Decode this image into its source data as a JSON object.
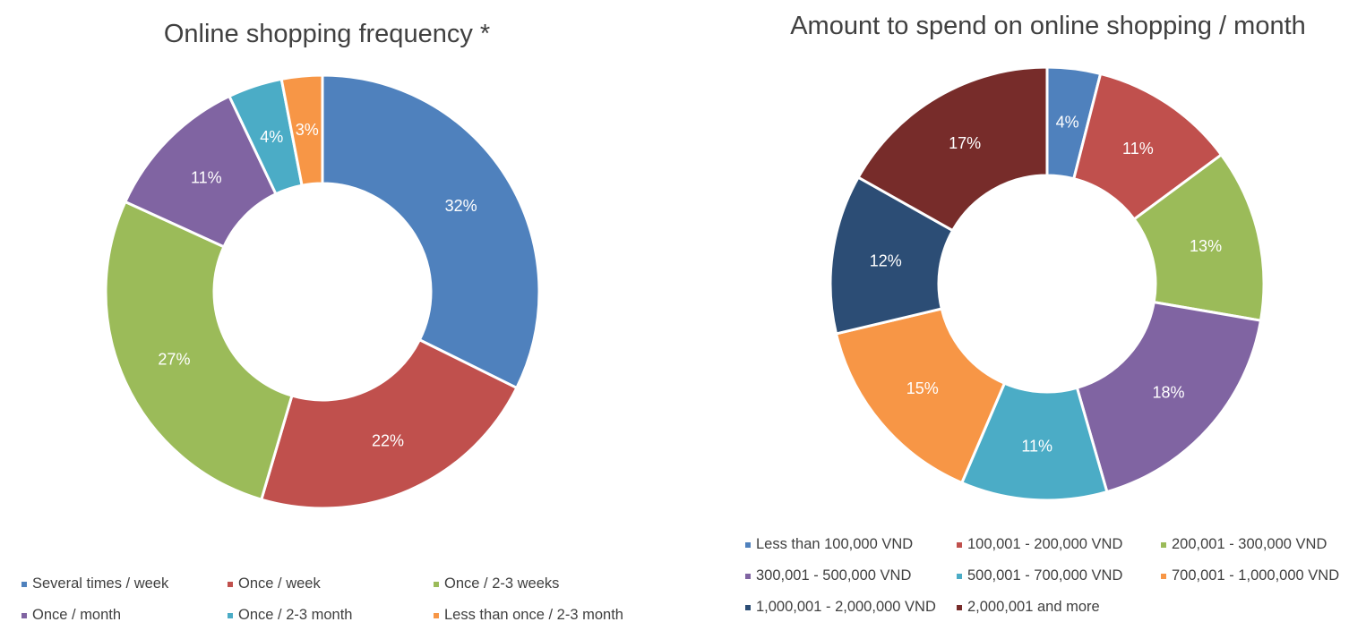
{
  "chart_data": [
    {
      "type": "pie",
      "title": "Online shopping frequency *",
      "categories": [
        "Several times / week",
        "Once / week",
        "Once / 2-3 weeks",
        "Once / month",
        "Once / 2-3 month",
        "Less than once / 2-3 month"
      ],
      "values": [
        32,
        22,
        27,
        11,
        4,
        3
      ],
      "labels": [
        "32%",
        "22%",
        "27%",
        "11%",
        "4%",
        "3%"
      ],
      "colors": [
        "#4f81bd",
        "#c0504d",
        "#9bbb59",
        "#8064a2",
        "#4bacc6",
        "#f79646"
      ],
      "legend_position": "bottom"
    },
    {
      "type": "pie",
      "title": "Amount to spend on online shopping / month",
      "categories": [
        "Less than 100,000 VND",
        "100,001 - 200,000 VND",
        "200,001 - 300,000 VND",
        "300,001 - 500,000 VND",
        "500,001 - 700,000 VND",
        "700,001 - 1,000,000 VND",
        "1,000,001 - 2,000,000 VND",
        "2,000,001 and more"
      ],
      "values": [
        4,
        11,
        13,
        18,
        11,
        15,
        12,
        17
      ],
      "labels": [
        "4%",
        "11%",
        "13%",
        "18%",
        "11%",
        "15%",
        "12%",
        "17%"
      ],
      "colors": [
        "#4f81bd",
        "#c0504d",
        "#9bbb59",
        "#8064a2",
        "#4bacc6",
        "#f79646",
        "#2c4d75",
        "#772c2a"
      ],
      "legend_position": "bottom"
    }
  ]
}
